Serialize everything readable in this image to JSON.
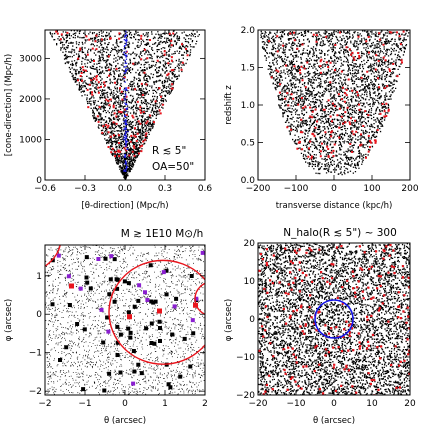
{
  "colors": {
    "points": "#000000",
    "highlight": "#e8141c",
    "annotation_blue": "#1414e6",
    "galaxy_purple": "#8a1fd0",
    "axis": "#000000"
  },
  "chart_data": [
    {
      "id": "cone-projection",
      "type": "scatter",
      "xlabel": "[θ-direction] (Mpc/h)",
      "ylabel": "[cone-direction] (Mpc/h)",
      "xlim": [
        -0.6,
        0.6
      ],
      "ylim": [
        0,
        3700
      ],
      "xticks": [
        -0.6,
        -0.3,
        0.0,
        0.3,
        0.6
      ],
      "xtick_labels": [
        "−0.6",
        "−0.3",
        "0.0",
        "0.3",
        "0.6"
      ],
      "yticks": [
        0,
        1000,
        2000,
        3000
      ],
      "ytick_labels": [
        "0",
        "1000",
        "2000",
        "3000"
      ],
      "series": [
        {
          "color": "#000000",
          "description": "halo/galaxy points filling a cone widening with distance"
        },
        {
          "color": "#e8141c",
          "description": "massive halos"
        },
        {
          "color": "#1414e6",
          "description": "line of sight within 5 arcsec"
        }
      ],
      "annotations": [
        {
          "text": "R ≲ 5\"",
          "color": "#1414e6"
        },
        {
          "text": "OA=50\"",
          "color": "#000000"
        }
      ],
      "grid": false
    },
    {
      "id": "redshift-distribution",
      "type": "scatter",
      "xlabel": "transverse distance (kpc/h)",
      "ylabel": "redshift z",
      "xlim": [
        -200,
        200
      ],
      "ylim": [
        0,
        2.0
      ],
      "xticks": [
        -200,
        -100,
        0,
        100,
        200
      ],
      "xtick_labels": [
        "−200",
        "−100",
        "0",
        "100",
        "200"
      ],
      "yticks": [
        0.0,
        0.5,
        1.0,
        1.5,
        2.0
      ],
      "ytick_labels": [
        "0.0",
        "0.5",
        "1.0",
        "1.5",
        "2.0"
      ],
      "series": [
        {
          "color": "#000000",
          "description": "halo points filling a bowl shape"
        },
        {
          "color": "#e8141c",
          "description": "massive halos"
        }
      ],
      "grid": false
    },
    {
      "id": "sky-map-zoom",
      "type": "scatter",
      "xlabel": "θ (arcsec)",
      "ylabel": "φ (arcsec)",
      "xlim": [
        -2,
        2
      ],
      "ylim": [
        -2.1,
        1.8
      ],
      "xticks": [
        -2,
        -1,
        0,
        1,
        2
      ],
      "xtick_labels": [
        "−2",
        "−1",
        "0",
        "1",
        "2"
      ],
      "yticks": [
        -2,
        -1,
        0,
        1
      ],
      "ytick_labels": [
        "−2",
        "−1",
        "0",
        "1"
      ],
      "title": "M ≳ 1E10 M⊙/h",
      "title_color": "#e8141c",
      "series": [
        {
          "color": "#000000",
          "description": "dense field of dark matter particles / tiny halos"
        },
        {
          "color": "#000000",
          "description": "halos (black squares)"
        },
        {
          "color": "#8a1fd0",
          "description": "galaxies (purple squares)"
        },
        {
          "color": "#e8141c",
          "description": "massive halos (red squares and circles)"
        }
      ],
      "circles": [
        {
          "cx": 0.95,
          "cy": 0.05,
          "r": 1.35,
          "color": "#e8141c"
        },
        {
          "cx": 2.2,
          "cy": 0.4,
          "r": 0.45,
          "color": "#e8141c"
        },
        {
          "cx": -2.5,
          "cy": 2.0,
          "r": 0.9,
          "color": "#e8141c"
        }
      ],
      "grid": false
    },
    {
      "id": "sky-map-wide",
      "type": "scatter",
      "xlabel": "θ (arcsec)",
      "ylabel": "φ (arcsec)",
      "xlim": [
        -20,
        20
      ],
      "ylim": [
        -20,
        20
      ],
      "xticks": [
        -20,
        -10,
        0,
        10,
        20
      ],
      "xtick_labels": [
        "−20",
        "−10",
        "0",
        "10",
        "20"
      ],
      "yticks": [
        -20,
        -10,
        0,
        10,
        20
      ],
      "ytick_labels": [
        "−20",
        "−10",
        "0",
        "10",
        "20"
      ],
      "title": "N_halo(R ≲ 5\") ~ 300",
      "title_color": "#1414e6",
      "series": [
        {
          "color": "#000000",
          "description": "halo field"
        },
        {
          "color": "#e8141c",
          "description": "massive halos"
        }
      ],
      "circles": [
        {
          "cx": 0,
          "cy": 0,
          "r": 5,
          "color": "#1414e6"
        }
      ],
      "grid": false
    }
  ]
}
